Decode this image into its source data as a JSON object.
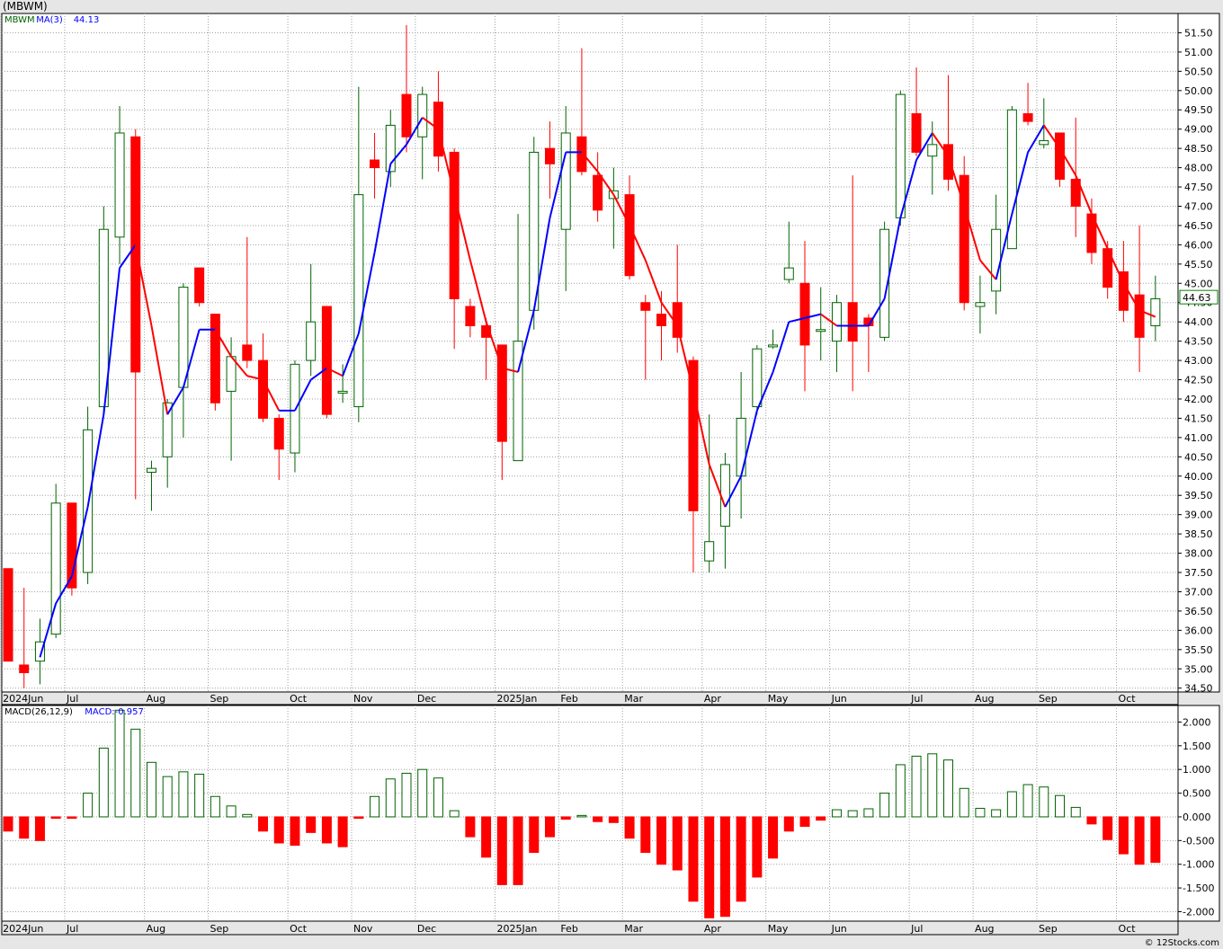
{
  "title": "(MBWM)",
  "watermark": "© 12Stocks.com",
  "colors": {
    "up": "#006400",
    "down": "#ff0000",
    "ma_up": "#0000ff",
    "ma_down": "#ff0000",
    "grid": "#a0a0a0",
    "panel_bg": "#ffffff",
    "page_bg": "#e6e6e6",
    "date_band": "#e6e6e6"
  },
  "chart_data": [
    {
      "type": "candlestick",
      "legend": [
        {
          "text": "MBWM",
          "color": "#006400"
        },
        {
          "text": "MA(3)",
          "color": "#0000ff"
        },
        {
          "text": "44.13",
          "color": "#0000ff"
        }
      ],
      "last_price_label": "44.63",
      "ylim": [
        34.4,
        52.0
      ],
      "y_ticks": [
        34.5,
        35.0,
        35.5,
        36.0,
        36.5,
        37.0,
        37.5,
        38.0,
        38.5,
        39.0,
        39.5,
        40.0,
        40.5,
        41.0,
        41.5,
        42.0,
        42.5,
        43.0,
        43.5,
        44.0,
        44.5,
        45.0,
        45.5,
        46.0,
        46.5,
        47.0,
        47.5,
        48.0,
        48.5,
        49.0,
        49.5,
        50.0,
        50.5,
        51.0,
        51.5
      ],
      "x_labels": [
        {
          "label": "2024Jun",
          "index": 0
        },
        {
          "label": "Jul",
          "index": 4
        },
        {
          "label": "Aug",
          "index": 9
        },
        {
          "label": "Sep",
          "index": 13
        },
        {
          "label": "Oct",
          "index": 18
        },
        {
          "label": "Nov",
          "index": 22
        },
        {
          "label": "Dec",
          "index": 26
        },
        {
          "label": "2025Jan",
          "index": 31
        },
        {
          "label": "Feb",
          "index": 35
        },
        {
          "label": "Mar",
          "index": 39
        },
        {
          "label": "Apr",
          "index": 44
        },
        {
          "label": "May",
          "index": 48
        },
        {
          "label": "Jun",
          "index": 52
        },
        {
          "label": "Jul",
          "index": 57
        },
        {
          "label": "Aug",
          "index": 61
        },
        {
          "label": "Sep",
          "index": 65
        },
        {
          "label": "Oct",
          "index": 70
        }
      ],
      "candles": [
        {
          "o": 37.6,
          "h": 37.6,
          "l": 35.2,
          "c": 35.2
        },
        {
          "o": 35.1,
          "h": 37.1,
          "l": 34.5,
          "c": 34.9
        },
        {
          "o": 35.2,
          "h": 36.3,
          "l": 34.6,
          "c": 35.7
        },
        {
          "o": 35.9,
          "h": 39.8,
          "l": 35.8,
          "c": 39.3
        },
        {
          "o": 39.3,
          "h": 39.3,
          "l": 36.9,
          "c": 37.1
        },
        {
          "o": 37.5,
          "h": 41.8,
          "l": 37.2,
          "c": 41.2
        },
        {
          "o": 41.8,
          "h": 47.0,
          "l": 41.6,
          "c": 46.4
        },
        {
          "o": 46.2,
          "h": 49.6,
          "l": 45.5,
          "c": 48.9
        },
        {
          "o": 48.8,
          "h": 49.0,
          "l": 39.4,
          "c": 42.7
        },
        {
          "o": 40.1,
          "h": 40.4,
          "l": 39.1,
          "c": 40.2
        },
        {
          "o": 40.5,
          "h": 42.0,
          "l": 39.7,
          "c": 41.9
        },
        {
          "o": 42.3,
          "h": 45.0,
          "l": 41.0,
          "c": 44.9
        },
        {
          "o": 45.4,
          "h": 45.4,
          "l": 44.4,
          "c": 44.5
        },
        {
          "o": 44.2,
          "h": 44.2,
          "l": 41.7,
          "c": 41.9
        },
        {
          "o": 42.2,
          "h": 43.6,
          "l": 40.4,
          "c": 43.1
        },
        {
          "o": 43.4,
          "h": 46.2,
          "l": 42.8,
          "c": 43.0
        },
        {
          "o": 43.0,
          "h": 43.7,
          "l": 41.4,
          "c": 41.5
        },
        {
          "o": 41.5,
          "h": 41.6,
          "l": 39.9,
          "c": 40.7
        },
        {
          "o": 40.6,
          "h": 43.0,
          "l": 40.1,
          "c": 42.9
        },
        {
          "o": 43.0,
          "h": 45.5,
          "l": 42.6,
          "c": 44.0
        },
        {
          "o": 44.4,
          "h": 44.4,
          "l": 41.5,
          "c": 41.6
        },
        {
          "o": 42.2,
          "h": 42.9,
          "l": 41.9,
          "c": 42.2
        },
        {
          "o": 41.8,
          "h": 50.1,
          "l": 41.4,
          "c": 47.3
        },
        {
          "o": 48.2,
          "h": 48.9,
          "l": 47.2,
          "c": 48.0
        },
        {
          "o": 47.9,
          "h": 49.5,
          "l": 47.5,
          "c": 49.1
        },
        {
          "o": 49.9,
          "h": 51.7,
          "l": 48.4,
          "c": 48.8
        },
        {
          "o": 48.8,
          "h": 50.1,
          "l": 47.7,
          "c": 49.9
        },
        {
          "o": 49.7,
          "h": 50.5,
          "l": 47.9,
          "c": 48.3
        },
        {
          "o": 48.4,
          "h": 48.5,
          "l": 43.3,
          "c": 44.6
        },
        {
          "o": 44.4,
          "h": 44.6,
          "l": 43.6,
          "c": 43.9
        },
        {
          "o": 43.9,
          "h": 44.1,
          "l": 42.5,
          "c": 43.6
        },
        {
          "o": 43.4,
          "h": 43.4,
          "l": 39.9,
          "c": 40.9
        },
        {
          "o": 40.4,
          "h": 46.8,
          "l": 40.4,
          "c": 43.5
        },
        {
          "o": 44.3,
          "h": 48.8,
          "l": 43.8,
          "c": 48.4
        },
        {
          "o": 48.5,
          "h": 49.2,
          "l": 47.2,
          "c": 48.1
        },
        {
          "o": 46.4,
          "h": 49.6,
          "l": 44.8,
          "c": 48.9
        },
        {
          "o": 48.8,
          "h": 51.1,
          "l": 47.8,
          "c": 47.9
        },
        {
          "o": 47.8,
          "h": 48.4,
          "l": 46.6,
          "c": 46.9
        },
        {
          "o": 47.2,
          "h": 48.0,
          "l": 45.9,
          "c": 47.4
        },
        {
          "o": 47.3,
          "h": 47.8,
          "l": 45.1,
          "c": 45.2
        },
        {
          "o": 44.5,
          "h": 44.7,
          "l": 42.5,
          "c": 44.3
        },
        {
          "o": 44.2,
          "h": 44.8,
          "l": 43.0,
          "c": 43.9
        },
        {
          "o": 44.5,
          "h": 46.0,
          "l": 43.2,
          "c": 43.6
        },
        {
          "o": 43.0,
          "h": 43.1,
          "l": 37.5,
          "c": 39.1
        },
        {
          "o": 37.8,
          "h": 41.6,
          "l": 37.5,
          "c": 38.3
        },
        {
          "o": 38.7,
          "h": 40.6,
          "l": 37.6,
          "c": 40.3
        },
        {
          "o": 40.0,
          "h": 42.7,
          "l": 38.9,
          "c": 41.5
        },
        {
          "o": 41.8,
          "h": 43.4,
          "l": 41.6,
          "c": 43.3
        },
        {
          "o": 43.4,
          "h": 43.8,
          "l": 43.3,
          "c": 43.4
        },
        {
          "o": 45.1,
          "h": 46.6,
          "l": 45.0,
          "c": 45.4
        },
        {
          "o": 45.0,
          "h": 46.1,
          "l": 42.2,
          "c": 43.4
        },
        {
          "o": 43.8,
          "h": 44.9,
          "l": 43.0,
          "c": 43.8
        },
        {
          "o": 43.5,
          "h": 44.7,
          "l": 42.7,
          "c": 44.5
        },
        {
          "o": 44.5,
          "h": 47.8,
          "l": 42.2,
          "c": 43.5
        },
        {
          "o": 44.1,
          "h": 44.2,
          "l": 42.7,
          "c": 43.9
        },
        {
          "o": 43.6,
          "h": 46.6,
          "l": 43.5,
          "c": 46.4
        },
        {
          "o": 46.7,
          "h": 50.0,
          "l": 46.5,
          "c": 49.9
        },
        {
          "o": 49.4,
          "h": 50.6,
          "l": 48.3,
          "c": 48.4
        },
        {
          "o": 48.3,
          "h": 49.2,
          "l": 47.3,
          "c": 48.6
        },
        {
          "o": 48.6,
          "h": 50.4,
          "l": 47.4,
          "c": 47.7
        },
        {
          "o": 47.8,
          "h": 48.3,
          "l": 44.3,
          "c": 44.5
        },
        {
          "o": 44.4,
          "h": 45.2,
          "l": 43.7,
          "c": 44.5
        },
        {
          "o": 44.8,
          "h": 47.3,
          "l": 44.2,
          "c": 46.4
        },
        {
          "o": 45.9,
          "h": 49.6,
          "l": 45.9,
          "c": 49.5
        },
        {
          "o": 49.4,
          "h": 50.2,
          "l": 49.1,
          "c": 49.2
        },
        {
          "o": 48.6,
          "h": 49.8,
          "l": 48.5,
          "c": 48.7
        },
        {
          "o": 48.9,
          "h": 48.9,
          "l": 47.5,
          "c": 47.7
        },
        {
          "o": 47.7,
          "h": 49.3,
          "l": 46.2,
          "c": 47.0
        },
        {
          "o": 46.8,
          "h": 47.2,
          "l": 45.5,
          "c": 45.8
        },
        {
          "o": 45.9,
          "h": 46.1,
          "l": 44.6,
          "c": 44.9
        },
        {
          "o": 45.3,
          "h": 46.1,
          "l": 44.0,
          "c": 44.3
        },
        {
          "o": 44.7,
          "h": 46.5,
          "l": 42.7,
          "c": 43.6
        },
        {
          "o": 43.9,
          "h": 45.2,
          "l": 43.5,
          "c": 44.6
        }
      ],
      "ma3": [
        null,
        null,
        35.3,
        36.7,
        37.4,
        39.2,
        41.6,
        45.4,
        46.0,
        43.9,
        41.6,
        42.3,
        43.8,
        43.8,
        43.1,
        42.6,
        42.5,
        41.7,
        41.7,
        42.5,
        42.8,
        42.6,
        43.7,
        45.8,
        48.1,
        48.6,
        49.3,
        49.0,
        47.3,
        45.6,
        44.0,
        42.8,
        42.7,
        44.3,
        46.7,
        48.4,
        48.4,
        47.9,
        47.3,
        46.5,
        45.6,
        44.5,
        43.9,
        42.2,
        40.3,
        39.2,
        40.0,
        41.7,
        42.7,
        44.0,
        44.1,
        44.2,
        43.9,
        43.9,
        43.9,
        44.6,
        46.7,
        48.2,
        48.9,
        48.3,
        47.0,
        45.6,
        45.1,
        46.8,
        48.4,
        49.1,
        48.5,
        47.8,
        46.8,
        45.9,
        45.0,
        44.3,
        44.13
      ]
    },
    {
      "type": "bar",
      "legend": [
        {
          "text": "MACD(26,12,9)",
          "color": "#000000"
        },
        {
          "text": "MACD:-0.957",
          "color": "#0000ff"
        }
      ],
      "ylim": [
        -2.2,
        2.35
      ],
      "y_ticks": [
        -2.0,
        -1.5,
        -1.0,
        -0.5,
        0.0,
        0.5,
        1.0,
        1.5,
        2.0
      ],
      "y_tick_labels": [
        "-2.000",
        "-1.500",
        "-1.000",
        "-0.500",
        "0.000",
        "0.500",
        "1.000",
        "1.500",
        "2.000"
      ],
      "values": [
        -0.3,
        -0.45,
        -0.5,
        -0.03,
        -0.03,
        0.5,
        1.45,
        2.25,
        1.85,
        1.15,
        0.85,
        0.95,
        0.9,
        0.43,
        0.23,
        0.05,
        -0.3,
        -0.55,
        -0.6,
        -0.33,
        -0.55,
        -0.63,
        -0.03,
        0.43,
        0.8,
        0.92,
        1.0,
        0.82,
        0.13,
        -0.42,
        -0.85,
        -1.43,
        -1.43,
        -0.75,
        -0.42,
        -0.05,
        0.03,
        -0.1,
        -0.12,
        -0.45,
        -0.75,
        -1.0,
        -1.12,
        -1.78,
        -2.13,
        -2.1,
        -1.78,
        -1.27,
        -0.87,
        -0.3,
        -0.2,
        -0.07,
        0.15,
        0.13,
        0.17,
        0.5,
        1.1,
        1.28,
        1.33,
        1.2,
        0.6,
        0.18,
        0.15,
        0.53,
        0.68,
        0.63,
        0.45,
        0.2,
        -0.15,
        -0.48,
        -0.78,
        -1.0,
        -0.96
      ]
    }
  ]
}
